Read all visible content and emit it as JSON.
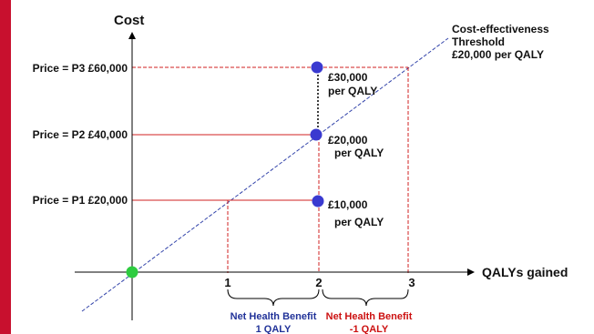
{
  "colors": {
    "frame": "#c8102e",
    "threshold": "#3344aa",
    "guide_red": "#d02020",
    "point_blue": "#3a3ad0",
    "origin_green": "#2ecc40",
    "benefit_blue": "#223399",
    "benefit_red": "#cc1111"
  },
  "axes": {
    "y_label": "Cost",
    "x_label": "QALYs gained"
  },
  "x_ticks": [
    "1",
    "2",
    "3"
  ],
  "price_labels": [
    "Price = P1 £20,000",
    "Price = P2 £40,000",
    "Price = P3 £60,000"
  ],
  "threshold_label": [
    "Cost-effectiveness",
    "Threshold",
    "£20,000 per QALY"
  ],
  "point_labels": [
    {
      "value": "£10,000",
      "unit": "per QALY"
    },
    {
      "value": "£20,000",
      "unit": "per QALY"
    },
    {
      "value": "£30,000",
      "unit": "per QALY"
    }
  ],
  "benefits": [
    {
      "line1": "Net Health Benefit",
      "line2": "1 QALY"
    },
    {
      "line1": "Net Health Benefit",
      "line2": "-1 QALY"
    }
  ]
}
